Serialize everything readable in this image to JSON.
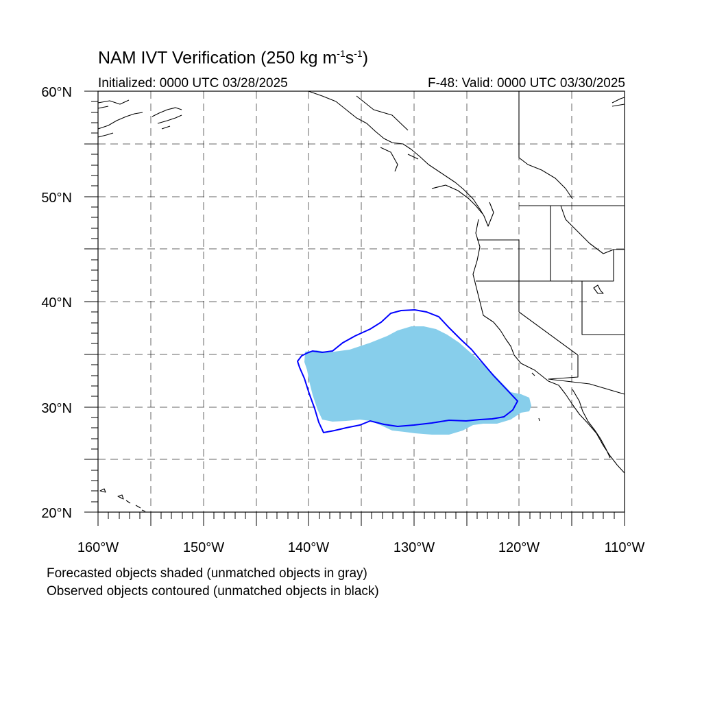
{
  "title": {
    "main": "NAM IVT Verification (250 kg m",
    "sup1": "-1",
    "mid": "s",
    "sup2": "-1",
    "close": ")"
  },
  "initialized": "Initialized: 0000 UTC 03/28/2025",
  "valid": "F-48: Valid: 0000 UTC 03/30/2025",
  "lat_labels": [
    "60°N",
    "50°N",
    "40°N",
    "30°N",
    "20°N"
  ],
  "lon_labels": [
    "160°W",
    "150°W",
    "140°W",
    "130°W",
    "120°W",
    "110°W"
  ],
  "footnote": [
    "Forecasted objects shaded (unmatched objects in gray)",
    "Observed objects contoured (unmatched objects in black)"
  ],
  "colors": {
    "forecast_fill": "#87ceeb",
    "observed_contour": "#0000ff",
    "coastline": "#000000"
  }
}
